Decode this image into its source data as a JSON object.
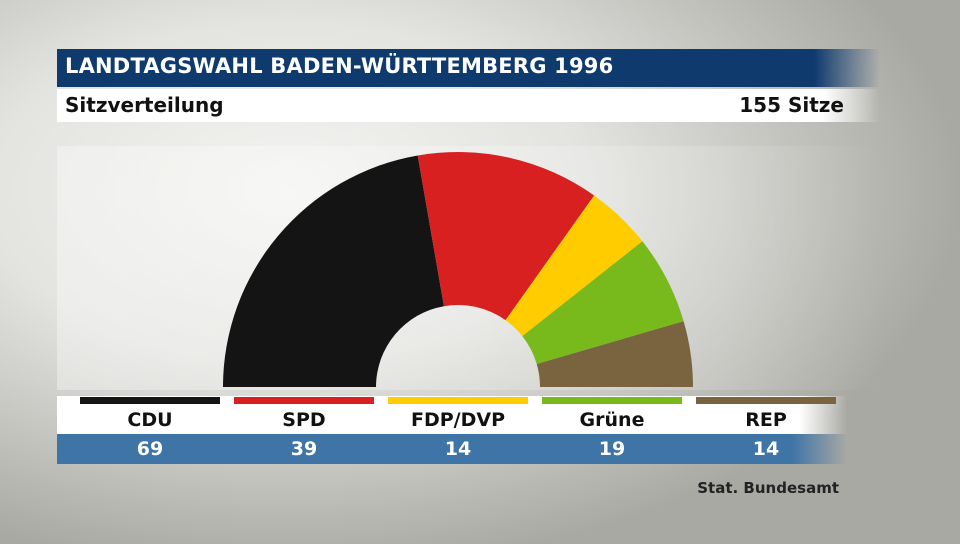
{
  "header": {
    "title": "LANDTAGSWAHL BADEN-WÜRTTEMBERG 1996",
    "subtitle": "Sitzverteilung",
    "total": "155 Sitze"
  },
  "source": "Stat. Bundesamt",
  "chart_data": {
    "type": "pie",
    "variant": "half-donut",
    "title": "LANDTAGSWAHL BADEN-WÜRTTEMBERG 1996",
    "subtitle": "Sitzverteilung",
    "total": 155,
    "categories": [
      "CDU",
      "SPD",
      "FDP/DVP",
      "Grüne",
      "REP"
    ],
    "values": [
      69,
      39,
      14,
      19,
      14
    ],
    "value_labels": [
      "69",
      "39",
      "14",
      "19",
      "14"
    ],
    "colors": [
      "#141414",
      "#d82020",
      "#ffcc00",
      "#78b91c",
      "#7a6440"
    ]
  }
}
